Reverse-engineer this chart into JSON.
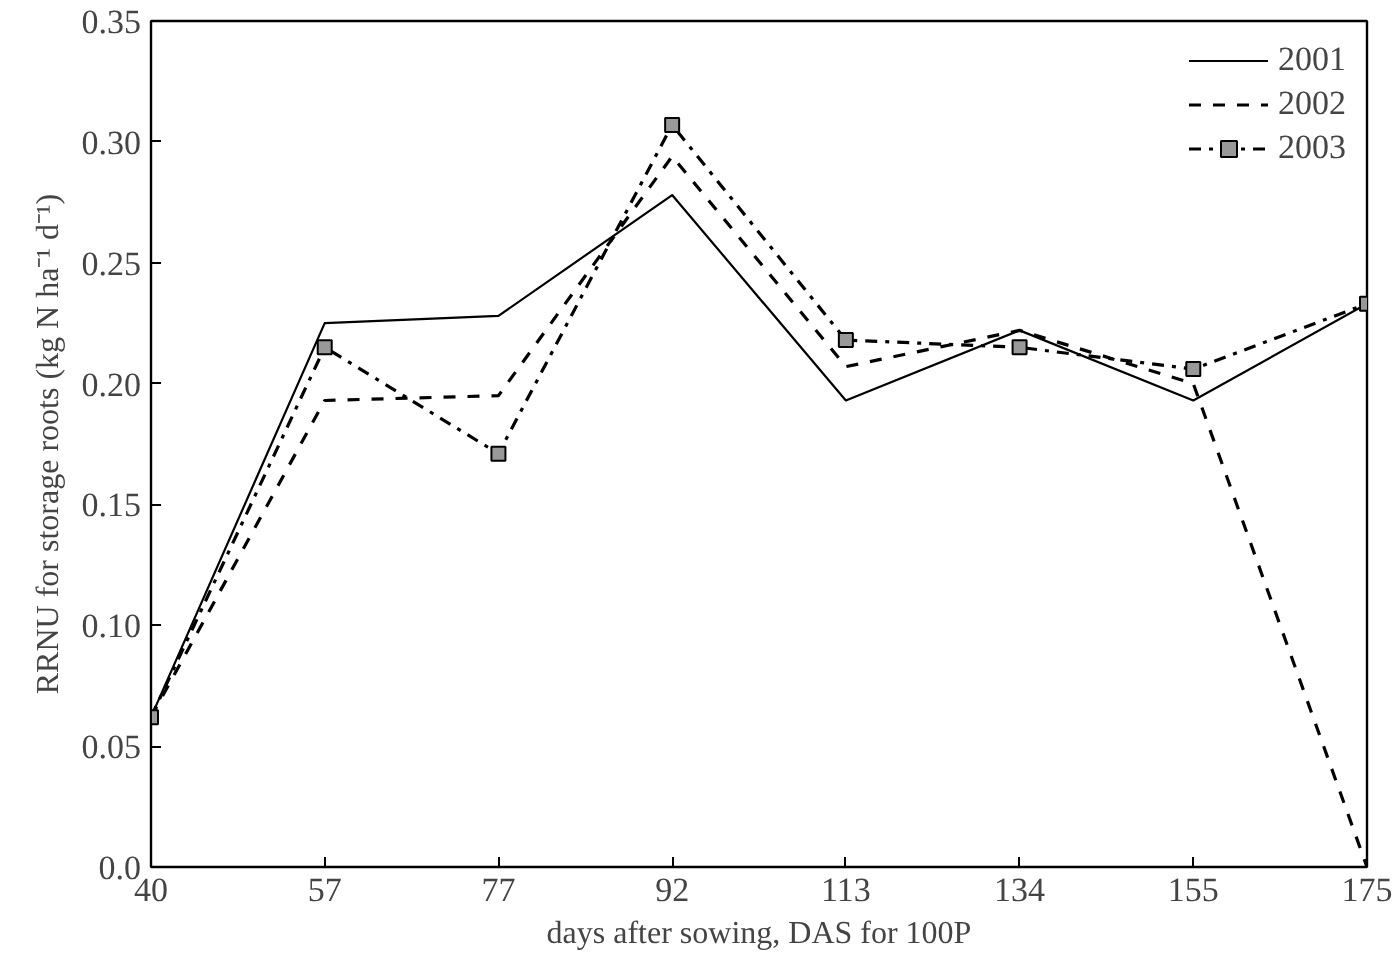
{
  "chart_data": {
    "type": "line",
    "xlabel": "days after sowing, DAS for 100P",
    "ylabel": "RRNU for storage roots (kg N ha⁻¹ d⁻¹)",
    "categories": [
      "40",
      "57",
      "77",
      "92",
      "113",
      "134",
      "155",
      "175"
    ],
    "ylim": [
      0,
      0.35
    ],
    "yticks": [
      {
        "value": 0,
        "label": "0.0"
      },
      0.05,
      {
        "value": 0.1,
        "label": "0.10"
      },
      0.15,
      {
        "value": 0.2,
        "label": "0.20"
      },
      0.25,
      {
        "value": 0.3,
        "label": "0.30"
      },
      0.35
    ],
    "grid": false,
    "legend": "top right",
    "series": [
      {
        "name": "2001",
        "color": "#000000",
        "line_style": "solid",
        "marker": "none",
        "values": [
          0.062,
          0.225,
          0.228,
          0.278,
          0.193,
          0.222,
          0.193,
          0.233
        ]
      },
      {
        "name": "2002",
        "color": "#000000",
        "line_style": "dashed",
        "marker": "none",
        "values": [
          0.062,
          0.193,
          0.195,
          0.294,
          0.207,
          0.222,
          0.2,
          0.0
        ]
      },
      {
        "name": "2003",
        "color": "#000000",
        "line_style": "dashdot",
        "marker": "square",
        "values": [
          0.062,
          0.215,
          0.171,
          0.307,
          0.218,
          0.215,
          0.206,
          0.233
        ]
      }
    ]
  }
}
